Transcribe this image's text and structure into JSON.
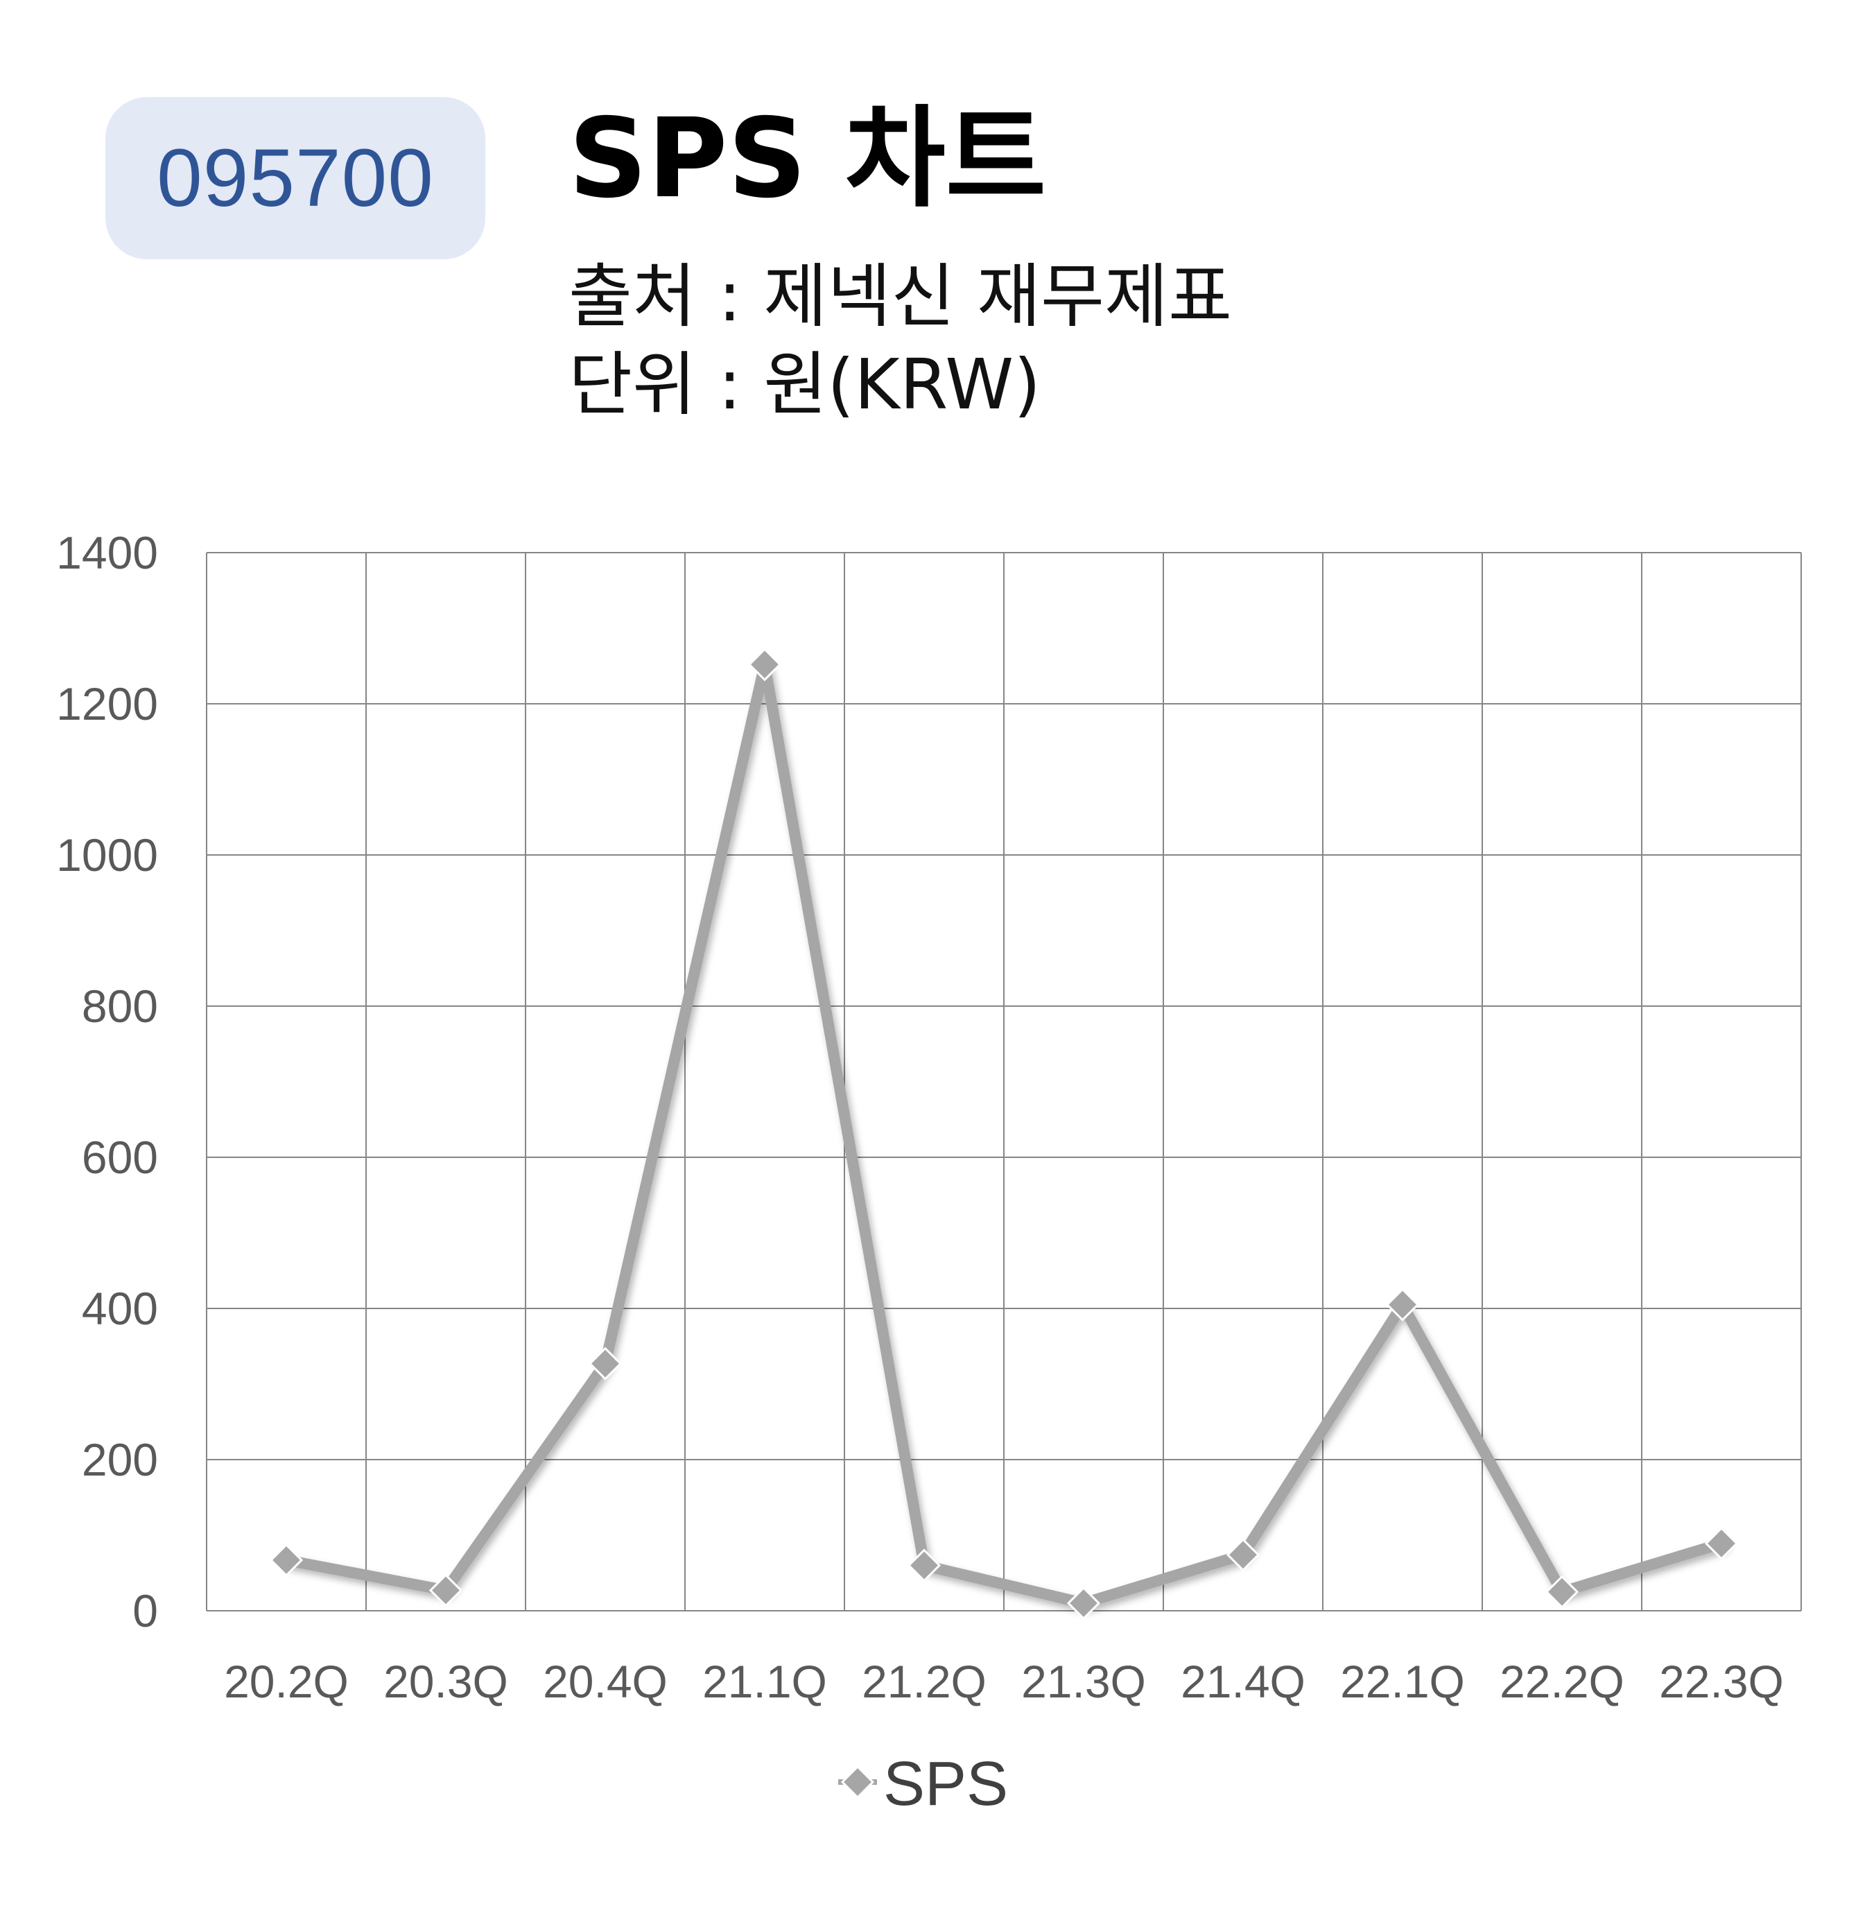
{
  "header": {
    "code": "095700",
    "title": "SPS 차트",
    "source": "출처 : 제넥신 재무제표",
    "unit": "단위 : 원(KRW)"
  },
  "colors": {
    "badge_bg": "#e3e9f5",
    "badge_text": "#2f5597",
    "series_line": "#a6a6a6",
    "marker": "#a6a6a6",
    "grid": "#868686"
  },
  "chart_data": {
    "type": "line",
    "title": "",
    "xlabel": "",
    "ylabel": "",
    "categories": [
      "20.2Q",
      "20.3Q",
      "20.4Q",
      "21.1Q",
      "21.2Q",
      "21.3Q",
      "21.4Q",
      "22.1Q",
      "22.2Q",
      "22.3Q"
    ],
    "series": [
      {
        "name": "SPS",
        "values": [
          67,
          27,
          327,
          1252,
          60,
          10,
          74,
          405,
          25,
          89
        ],
        "marker": "diamond"
      }
    ],
    "ylim": [
      0,
      1400
    ],
    "yticks": [
      0,
      200,
      400,
      600,
      800,
      1000,
      1200,
      1400
    ],
    "grid": true,
    "legend": "bottom"
  }
}
